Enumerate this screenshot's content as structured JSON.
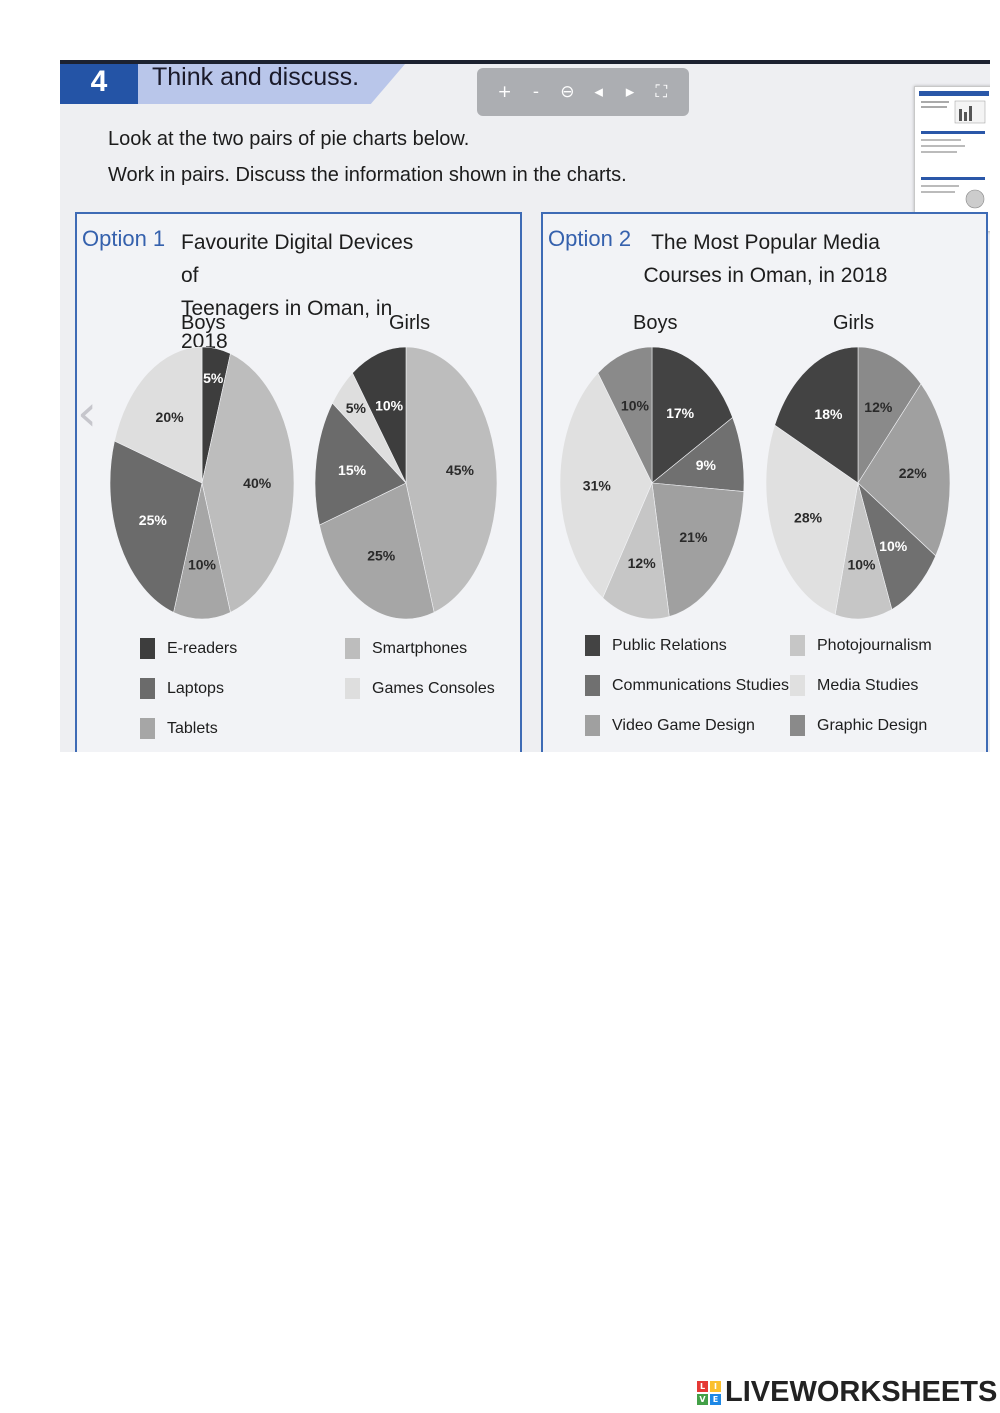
{
  "exercise": {
    "number": "4",
    "title": "Think and discuss."
  },
  "toolbar": {
    "zoom_in": "+",
    "zoom_out": "-",
    "zoom_reset": "⊖",
    "prev": "◂",
    "next": "▸",
    "fullscreen": "⛶"
  },
  "instructions": {
    "line1": "Look at the two pairs of pie charts below.",
    "line2": "Work in pairs. Discuss the information shown in the charts."
  },
  "option1": {
    "label": "Option 1",
    "title_line1": "Favourite Digital Devices of",
    "title_line2": "Teenagers in Oman, in 2018",
    "boys_label": "Boys",
    "girls_label": "Girls",
    "legend": [
      "E-readers",
      "Smartphones",
      "Laptops",
      "Games Consoles",
      "Tablets"
    ]
  },
  "option2": {
    "label": "Option 2",
    "title_line1": "The Most Popular Media",
    "title_line2": "Courses in Oman, in 2018",
    "boys_label": "Boys",
    "girls_label": "Girls",
    "legend": [
      "Public Relations",
      "Photojournalism",
      "Communications Studies",
      "Media Studies",
      "Video Game Design",
      "Graphic Design"
    ]
  },
  "nav": {
    "left": "‹",
    "right": "‹"
  },
  "brand": {
    "name": "LIVEWORKSHEETS",
    "tiles": [
      "L",
      "I",
      "V",
      "E"
    ],
    "tile_colors": [
      "#e53935",
      "#fbc02d",
      "#43a047",
      "#1e88e5"
    ]
  },
  "colors": {
    "accent": "#2454a6",
    "E-readers": "#3d3d3d",
    "Laptops": "#6b6b6b",
    "Tablets": "#a6a6a6",
    "Smartphones": "#bdbdbd",
    "Games Consoles": "#dedede",
    "Public Relations": "#434343",
    "Communications Studies": "#707070",
    "Video Game Design": "#a0a0a0",
    "Photojournalism": "#c6c6c6",
    "Media Studies": "#e0e0e0",
    "Graphic Design": "#8a8a8a"
  },
  "chart_data": [
    {
      "type": "pie",
      "title": "Favourite Digital Devices of Teenagers in Oman, in 2018",
      "series_label": "Boys",
      "slices": [
        {
          "label": "E-readers",
          "value": 5,
          "text": "5%"
        },
        {
          "label": "Smartphones",
          "value": 40,
          "text": "40%"
        },
        {
          "label": "Tablets",
          "value": 10,
          "text": "10%"
        },
        {
          "label": "Laptops",
          "value": 25,
          "text": "25%"
        },
        {
          "label": "Games Consoles",
          "value": 20,
          "text": "20%"
        }
      ]
    },
    {
      "type": "pie",
      "title": "Favourite Digital Devices of Teenagers in Oman, in 2018",
      "series_label": "Girls",
      "slices": [
        {
          "label": "Smartphones",
          "value": 45,
          "text": "45%"
        },
        {
          "label": "Tablets",
          "value": 25,
          "text": "25%"
        },
        {
          "label": "Laptops",
          "value": 15,
          "text": "15%"
        },
        {
          "label": "Games Consoles",
          "value": 5,
          "text": "5%"
        },
        {
          "label": "E-readers",
          "value": 10,
          "text": "10%"
        }
      ]
    },
    {
      "type": "pie",
      "title": "The Most Popular Media Courses in Oman, in 2018",
      "series_label": "Boys",
      "slices": [
        {
          "label": "Public Relations",
          "value": 17,
          "text": "17%"
        },
        {
          "label": "Communications Studies",
          "value": 9,
          "text": "9%"
        },
        {
          "label": "Video Game Design",
          "value": 21,
          "text": "21%"
        },
        {
          "label": "Photojournalism",
          "value": 12,
          "text": "12%"
        },
        {
          "label": "Media Studies",
          "value": 31,
          "text": "31%"
        },
        {
          "label": "Graphic Design",
          "value": 10,
          "text": "10%"
        }
      ]
    },
    {
      "type": "pie",
      "title": "The Most Popular Media Courses in Oman, in 2018",
      "series_label": "Girls",
      "slices": [
        {
          "label": "Graphic Design",
          "value": 12,
          "text": "12%"
        },
        {
          "label": "Video Game Design",
          "value": 22,
          "text": "22%"
        },
        {
          "label": "Communications Studies",
          "value": 10,
          "text": "10%"
        },
        {
          "label": "Photojournalism",
          "value": 10,
          "text": "10%"
        },
        {
          "label": "Media Studies",
          "value": 28,
          "text": "28%"
        },
        {
          "label": "Public Relations",
          "value": 18,
          "text": "18%"
        }
      ]
    }
  ]
}
